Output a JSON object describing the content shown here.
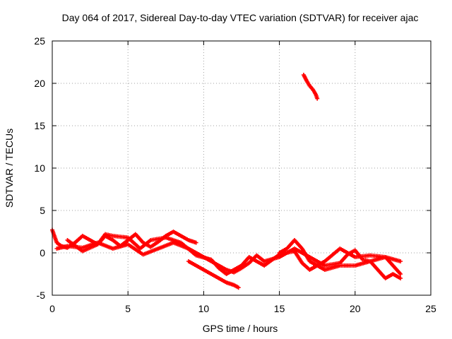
{
  "chart_data": {
    "type": "scatter",
    "title": "Day 064 of 2017, Sidereal Day-to-day VTEC variation (SDTVAR) for receiver ajac",
    "xlabel": "GPS time / hours",
    "ylabel": "SDTVAR / TECUs",
    "xlim": [
      0,
      25
    ],
    "ylim": [
      -5,
      25
    ],
    "xticks": [
      "0",
      "5",
      "10",
      "15",
      "20",
      "25"
    ],
    "yticks": [
      "-5",
      "0",
      "5",
      "10",
      "15",
      "20",
      "25"
    ],
    "grid": true,
    "marker": "+",
    "color": "#ff0000",
    "series": [
      {
        "name": "track-1",
        "x": [
          0.0,
          0.3,
          0.6,
          1.0,
          1.5,
          2.0,
          2.5,
          3.0,
          3.5,
          4.0,
          4.5,
          5.0,
          5.5,
          6.0,
          6.5,
          7.0,
          7.5,
          8.0,
          8.5,
          9.0,
          9.5
        ],
        "y": [
          2.7,
          1.2,
          0.8,
          0.6,
          1.2,
          2.0,
          1.5,
          1.0,
          2.0,
          1.5,
          0.8,
          1.5,
          2.2,
          1.2,
          0.7,
          1.3,
          2.0,
          2.5,
          2.0,
          1.5,
          1.2
        ]
      },
      {
        "name": "track-2",
        "x": [
          0.3,
          1.0,
          2.0,
          3.0,
          4.0,
          5.0,
          6.0,
          7.0,
          8.0,
          9.0,
          10.0,
          11.0,
          11.5,
          12.0,
          12.5,
          13.0,
          13.5,
          14.0,
          15.0,
          16.0,
          17.0,
          18.0,
          19.0,
          19.5,
          20.0,
          20.5,
          21.0,
          22.0,
          22.5,
          23.0
        ],
        "y": [
          0.5,
          0.8,
          0.6,
          1.2,
          0.5,
          1.0,
          -0.2,
          0.5,
          1.2,
          0.5,
          -0.5,
          -1.5,
          -2.0,
          -2.3,
          -1.8,
          -1.2,
          -0.3,
          -1.0,
          -0.5,
          0.5,
          -0.5,
          -1.5,
          -1.2,
          -0.2,
          0.3,
          -0.8,
          -1.0,
          -0.5,
          -1.5,
          -2.5
        ]
      },
      {
        "name": "track-3",
        "x": [
          1.0,
          2.0,
          3.0,
          3.5,
          4.0,
          5.0,
          5.8,
          6.5,
          7.5,
          8.5,
          9.5,
          10.5,
          11.0,
          11.5,
          12.0,
          12.5,
          13.0,
          14.0,
          15.0,
          16.0,
          16.5,
          17.0,
          18.0,
          19.0,
          20.0,
          21.0,
          22.0,
          23.0
        ],
        "y": [
          1.5,
          0.2,
          1.0,
          2.2,
          2.0,
          1.8,
          0.5,
          1.5,
          1.8,
          1.2,
          -0.3,
          -0.8,
          -1.8,
          -2.5,
          -2.0,
          -1.5,
          -0.5,
          -1.5,
          -0.2,
          0.2,
          -1.2,
          -2.0,
          -1.0,
          0.5,
          -0.5,
          -0.3,
          -0.5,
          -1.0
        ]
      },
      {
        "name": "track-4",
        "x": [
          9.0,
          9.5,
          10.0,
          10.5,
          11.0,
          11.5,
          12.0,
          12.3
        ],
        "y": [
          -1.0,
          -1.5,
          -2.0,
          -2.5,
          -3.0,
          -3.5,
          -3.8,
          -4.1
        ]
      },
      {
        "name": "track-5",
        "x": [
          15.0,
          15.5,
          16.0,
          16.5,
          17.0,
          18.0,
          19.0,
          20.0,
          21.0,
          21.5,
          22.0,
          22.5,
          23.0
        ],
        "y": [
          0.0,
          0.5,
          1.5,
          0.5,
          -1.0,
          -2.0,
          -1.5,
          -1.5,
          -1.0,
          -2.0,
          -3.0,
          -2.5,
          -3.0
        ]
      },
      {
        "name": "track-6",
        "x": [
          16.6,
          16.8,
          17.0,
          17.2,
          17.4,
          17.5
        ],
        "y": [
          21.0,
          20.3,
          19.7,
          19.3,
          18.7,
          18.2
        ]
      }
    ]
  }
}
